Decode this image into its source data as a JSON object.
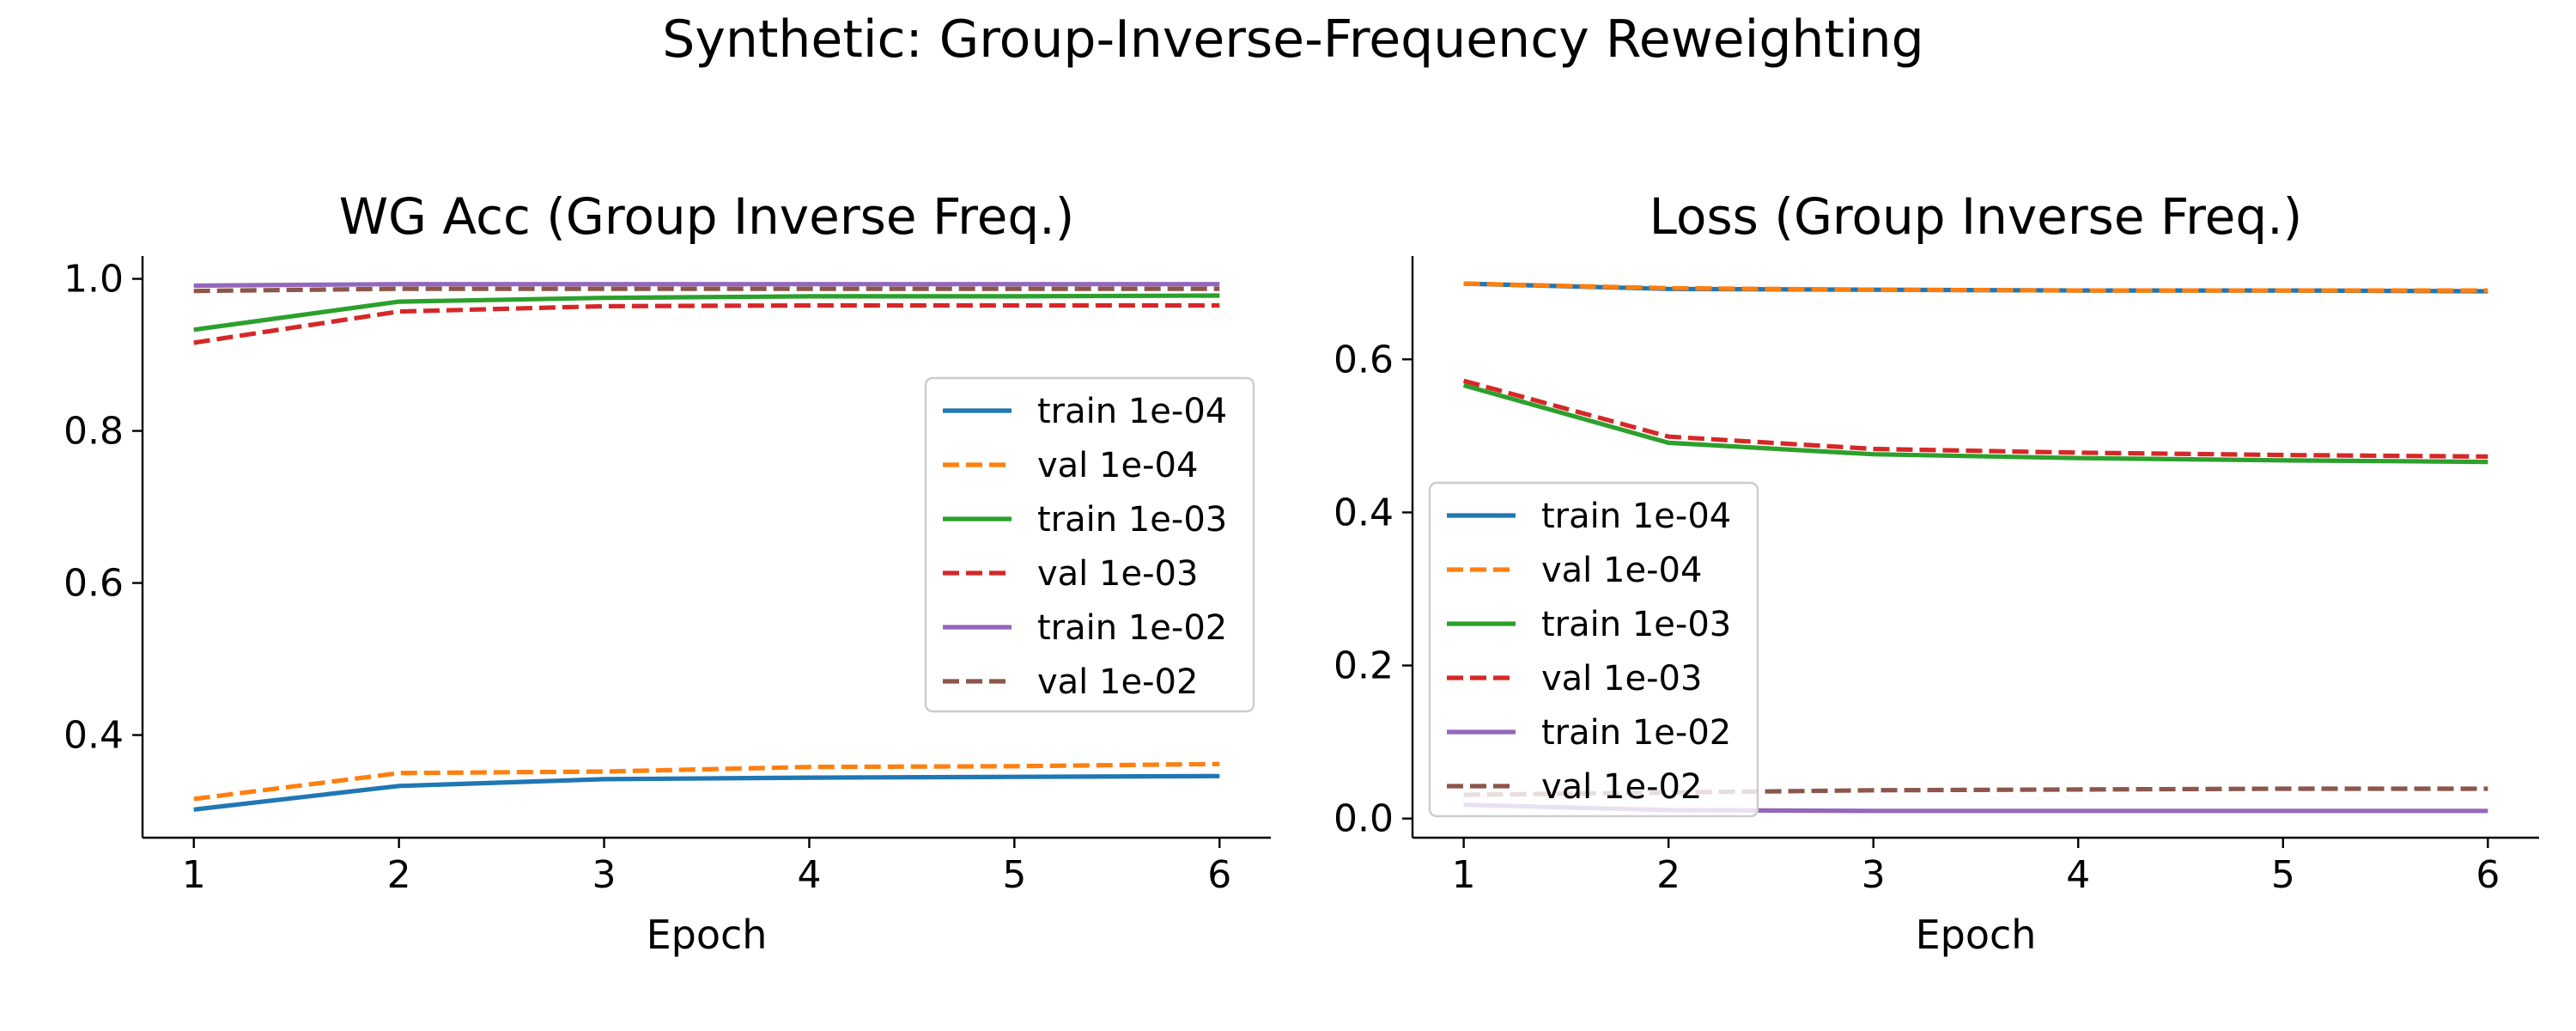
{
  "figure": {
    "suptitle": "Synthetic: Group-Inverse-Frequency Reweighting"
  },
  "chart_data": [
    {
      "type": "line",
      "title": "WG Acc (Group Inverse Freq.)",
      "xlabel": "Epoch",
      "ylabel": "",
      "x": [
        1,
        2,
        3,
        4,
        5,
        6
      ],
      "xlim": [
        0.75,
        6.25
      ],
      "ylim": [
        0.265,
        1.03
      ],
      "xticks": [
        1,
        2,
        3,
        4,
        5,
        6
      ],
      "yticks": [
        0.4,
        0.6,
        0.8,
        1.0
      ],
      "ytick_labels": [
        "0.4",
        "0.6",
        "0.8",
        "1.0"
      ],
      "grid": false,
      "legend_position": "center-right",
      "series": [
        {
          "name": "train 1e-04",
          "color": "#1f77b4",
          "dash": "solid",
          "values": [
            0.302,
            0.333,
            0.342,
            0.344,
            0.345,
            0.346
          ]
        },
        {
          "name": "val 1e-04",
          "color": "#ff7f0e",
          "dash": "dashed",
          "values": [
            0.316,
            0.35,
            0.352,
            0.358,
            0.359,
            0.362
          ]
        },
        {
          "name": "train 1e-03",
          "color": "#2ca02c",
          "dash": "solid",
          "values": [
            0.933,
            0.97,
            0.975,
            0.977,
            0.977,
            0.978
          ]
        },
        {
          "name": "val 1e-03",
          "color": "#d62728",
          "dash": "dashed",
          "values": [
            0.916,
            0.957,
            0.964,
            0.965,
            0.965,
            0.965
          ]
        },
        {
          "name": "train 1e-02",
          "color": "#9467bd",
          "dash": "solid",
          "values": [
            0.991,
            0.993,
            0.993,
            0.993,
            0.993,
            0.993
          ]
        },
        {
          "name": "val 1e-02",
          "color": "#8c564b",
          "dash": "dashed",
          "values": [
            0.984,
            0.987,
            0.987,
            0.987,
            0.987,
            0.987
          ]
        }
      ]
    },
    {
      "type": "line",
      "title": "Loss (Group Inverse Freq.)",
      "xlabel": "Epoch",
      "ylabel": "",
      "x": [
        1,
        2,
        3,
        4,
        5,
        6
      ],
      "xlim": [
        0.75,
        6.25
      ],
      "ylim": [
        -0.025,
        0.735
      ],
      "xticks": [
        1,
        2,
        3,
        4,
        5,
        6
      ],
      "yticks": [
        0.0,
        0.2,
        0.4,
        0.6
      ],
      "ytick_labels": [
        "0.0",
        "0.2",
        "0.4",
        "0.6"
      ],
      "grid": false,
      "legend_position": "lower-left",
      "series": [
        {
          "name": "train 1e-04",
          "color": "#1f77b4",
          "dash": "solid",
          "values": [
            0.699,
            0.692,
            0.691,
            0.69,
            0.69,
            0.689
          ]
        },
        {
          "name": "val 1e-04",
          "color": "#ff7f0e",
          "dash": "dashed",
          "values": [
            0.699,
            0.693,
            0.691,
            0.69,
            0.69,
            0.69
          ]
        },
        {
          "name": "train 1e-03",
          "color": "#2ca02c",
          "dash": "solid",
          "values": [
            0.566,
            0.491,
            0.476,
            0.471,
            0.468,
            0.466
          ]
        },
        {
          "name": "val 1e-03",
          "color": "#d62728",
          "dash": "dashed",
          "values": [
            0.572,
            0.499,
            0.483,
            0.478,
            0.475,
            0.473
          ]
        },
        {
          "name": "train 1e-02",
          "color": "#9467bd",
          "dash": "solid",
          "values": [
            0.018,
            0.011,
            0.01,
            0.01,
            0.01,
            0.01
          ]
        },
        {
          "name": "val 1e-02",
          "color": "#8c564b",
          "dash": "dashed",
          "values": [
            0.031,
            0.034,
            0.037,
            0.038,
            0.039,
            0.039
          ]
        }
      ]
    }
  ]
}
